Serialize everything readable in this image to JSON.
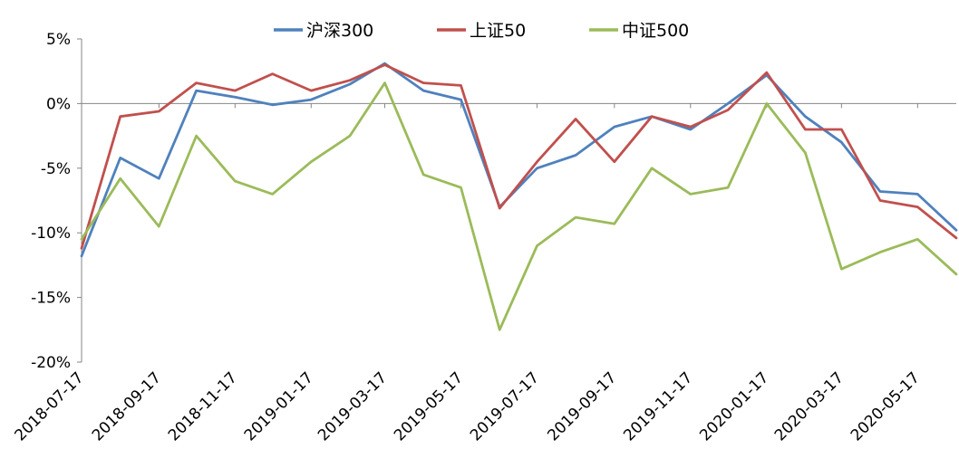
{
  "chart_data": {
    "type": "line",
    "title": "",
    "xlabel": "",
    "ylabel": "",
    "ylim": [
      -20,
      5
    ],
    "y_tick_values": [
      5,
      0,
      -5,
      -10,
      -15,
      -20
    ],
    "y_tick_labels": [
      "5%",
      "0%",
      "-5%",
      "-10%",
      "-15%",
      "-20%"
    ],
    "x_tick_labels": [
      "2018-07-17",
      "2018-09-17",
      "2018-11-17",
      "2019-01-17",
      "2019-03-17",
      "2019-05-17",
      "2019-07-17",
      "2019-09-17",
      "2019-11-17",
      "2020-01-17",
      "2020-03-17",
      "2020-05-17"
    ],
    "grid": false,
    "legend_position": "top",
    "x": [
      "2018-07-17",
      "2018-08-17",
      "2018-09-17",
      "2018-10-17",
      "2018-11-17",
      "2018-12-17",
      "2019-01-17",
      "2019-02-17",
      "2019-03-17",
      "2019-04-17",
      "2019-05-17",
      "2019-06-17",
      "2019-07-17",
      "2019-08-17",
      "2019-09-17",
      "2019-10-17",
      "2019-11-17",
      "2019-12-17",
      "2020-01-17",
      "2020-02-17",
      "2020-03-17",
      "2020-04-17",
      "2020-05-17",
      "2020-06-17"
    ],
    "series": [
      {
        "name": "沪深300",
        "color": "#4F81BD",
        "values": [
          -11.8,
          -4.2,
          -5.8,
          1.0,
          0.5,
          -0.1,
          0.3,
          1.5,
          3.1,
          1.0,
          0.3,
          -8.0,
          -5.0,
          -4.0,
          -1.8,
          -1.0,
          -2.0,
          0.0,
          2.2,
          -1.0,
          -3.0,
          -6.8,
          -7.0,
          -9.8
        ]
      },
      {
        "name": "上证50",
        "color": "#C0504D",
        "values": [
          -11.2,
          -1.0,
          -0.6,
          1.6,
          1.0,
          2.3,
          1.0,
          1.8,
          3.0,
          1.6,
          1.4,
          -8.1,
          -4.5,
          -1.2,
          -4.5,
          -1.0,
          -1.8,
          -0.5,
          2.4,
          -2.0,
          -2.0,
          -7.5,
          -8.0,
          -10.4
        ]
      },
      {
        "name": "中证500",
        "color": "#9BBB59",
        "values": [
          -10.5,
          -5.8,
          -9.5,
          -2.5,
          -6.0,
          -7.0,
          -4.5,
          -2.5,
          1.6,
          -5.5,
          -6.5,
          -17.5,
          -11.0,
          -8.8,
          -9.3,
          -5.0,
          -7.0,
          -6.5,
          0.0,
          -3.8,
          -12.8,
          -11.5,
          -10.5,
          -13.2
        ]
      }
    ]
  }
}
